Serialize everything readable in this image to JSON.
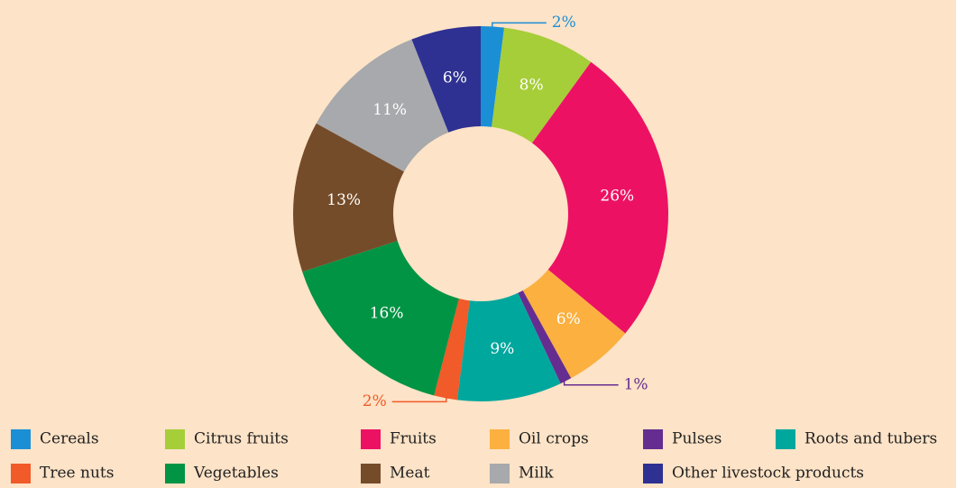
{
  "chart_data": {
    "type": "donut",
    "categories": [
      "Cereals",
      "Citrus fruits",
      "Fruits",
      "Oil crops",
      "Pulses",
      "Roots and tubers",
      "Tree nuts",
      "Vegetables",
      "Meat",
      "Milk",
      "Other livestock products"
    ],
    "values": [
      2,
      8,
      26,
      6,
      1,
      9,
      2,
      16,
      13,
      11,
      6
    ],
    "value_labels": [
      "2%",
      "8%",
      "26%",
      "6%",
      "1%",
      "9%",
      "2%",
      "16%",
      "13%",
      "11%",
      "6%"
    ],
    "colors": [
      "#1b8fd6",
      "#a6ce39",
      "#ed1164",
      "#fbb040",
      "#662d91",
      "#00a79d",
      "#f15a29",
      "#009444",
      "#754c29",
      "#a7a9ac",
      "#2e3192"
    ],
    "legend": "bottom"
  }
}
